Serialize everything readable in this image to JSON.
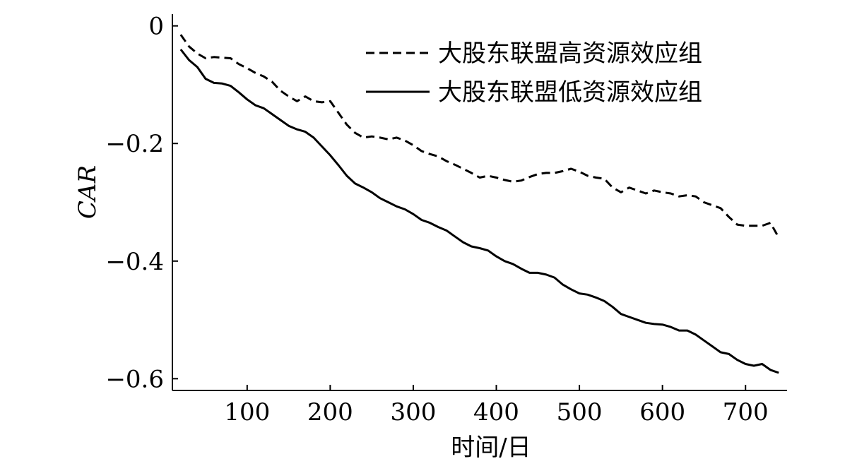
{
  "chart_data": {
    "type": "line",
    "xlabel": "时间/日",
    "ylabel": "CAR",
    "xlim": [
      10,
      750
    ],
    "ylim": [
      -0.62,
      0.02
    ],
    "xticks": [
      100,
      200,
      300,
      400,
      500,
      600,
      700
    ],
    "yticks": [
      0,
      -0.2,
      -0.4,
      -0.6
    ],
    "xtick_labels": [
      "100",
      "200",
      "300",
      "400",
      "500",
      "600",
      "700"
    ],
    "ytick_labels": [
      "0",
      "−0.2",
      "−0.4",
      "−0.6"
    ],
    "legend_position": "top-right",
    "grid": false,
    "series": [
      {
        "name": "大股东联盟高资源效应组",
        "style": "dashed",
        "color": "#000000",
        "x": [
          20,
          30,
          40,
          50,
          60,
          70,
          80,
          90,
          100,
          110,
          120,
          130,
          140,
          150,
          160,
          170,
          180,
          190,
          200,
          210,
          220,
          230,
          240,
          250,
          260,
          270,
          280,
          290,
          300,
          310,
          320,
          330,
          340,
          350,
          360,
          370,
          380,
          390,
          400,
          410,
          420,
          430,
          440,
          450,
          460,
          470,
          480,
          490,
          500,
          510,
          520,
          530,
          540,
          550,
          560,
          570,
          580,
          590,
          600,
          610,
          620,
          630,
          640,
          650,
          660,
          670,
          680,
          690,
          700,
          710,
          720,
          730,
          740
        ],
        "y": [
          -0.015,
          -0.035,
          -0.047,
          -0.055,
          -0.053,
          -0.054,
          -0.055,
          -0.065,
          -0.072,
          -0.08,
          -0.086,
          -0.095,
          -0.11,
          -0.12,
          -0.128,
          -0.12,
          -0.128,
          -0.13,
          -0.128,
          -0.148,
          -0.168,
          -0.182,
          -0.19,
          -0.188,
          -0.19,
          -0.193,
          -0.19,
          -0.195,
          -0.203,
          -0.213,
          -0.218,
          -0.222,
          -0.23,
          -0.236,
          -0.243,
          -0.25,
          -0.258,
          -0.255,
          -0.258,
          -0.262,
          -0.265,
          -0.263,
          -0.257,
          -0.252,
          -0.25,
          -0.25,
          -0.247,
          -0.243,
          -0.248,
          -0.255,
          -0.258,
          -0.26,
          -0.275,
          -0.283,
          -0.275,
          -0.28,
          -0.285,
          -0.28,
          -0.283,
          -0.285,
          -0.29,
          -0.288,
          -0.29,
          -0.3,
          -0.305,
          -0.31,
          -0.325,
          -0.338,
          -0.34,
          -0.34,
          -0.34,
          -0.335,
          -0.36
        ]
      },
      {
        "name": "大股东联盟低资源效应组",
        "style": "solid",
        "color": "#000000",
        "x": [
          20,
          30,
          40,
          50,
          60,
          70,
          80,
          90,
          100,
          110,
          120,
          130,
          140,
          150,
          160,
          170,
          180,
          190,
          200,
          210,
          220,
          230,
          240,
          250,
          260,
          270,
          280,
          290,
          300,
          310,
          320,
          330,
          340,
          350,
          360,
          370,
          380,
          390,
          400,
          410,
          420,
          430,
          440,
          450,
          460,
          470,
          480,
          490,
          500,
          510,
          520,
          530,
          540,
          550,
          560,
          570,
          580,
          590,
          600,
          610,
          620,
          630,
          640,
          650,
          660,
          670,
          680,
          690,
          700,
          710,
          720,
          730,
          740
        ],
        "y": [
          -0.04,
          -0.058,
          -0.07,
          -0.09,
          -0.097,
          -0.098,
          -0.102,
          -0.113,
          -0.125,
          -0.135,
          -0.14,
          -0.15,
          -0.16,
          -0.17,
          -0.176,
          -0.18,
          -0.19,
          -0.205,
          -0.22,
          -0.237,
          -0.255,
          -0.268,
          -0.275,
          -0.283,
          -0.293,
          -0.3,
          -0.307,
          -0.312,
          -0.32,
          -0.33,
          -0.335,
          -0.342,
          -0.348,
          -0.358,
          -0.368,
          -0.375,
          -0.378,
          -0.382,
          -0.392,
          -0.4,
          -0.405,
          -0.413,
          -0.42,
          -0.42,
          -0.423,
          -0.428,
          -0.44,
          -0.448,
          -0.455,
          -0.457,
          -0.462,
          -0.468,
          -0.478,
          -0.49,
          -0.495,
          -0.5,
          -0.505,
          -0.507,
          -0.508,
          -0.512,
          -0.518,
          -0.518,
          -0.525,
          -0.535,
          -0.545,
          -0.555,
          -0.558,
          -0.568,
          -0.575,
          -0.578,
          -0.575,
          -0.585,
          -0.59
        ]
      }
    ]
  }
}
